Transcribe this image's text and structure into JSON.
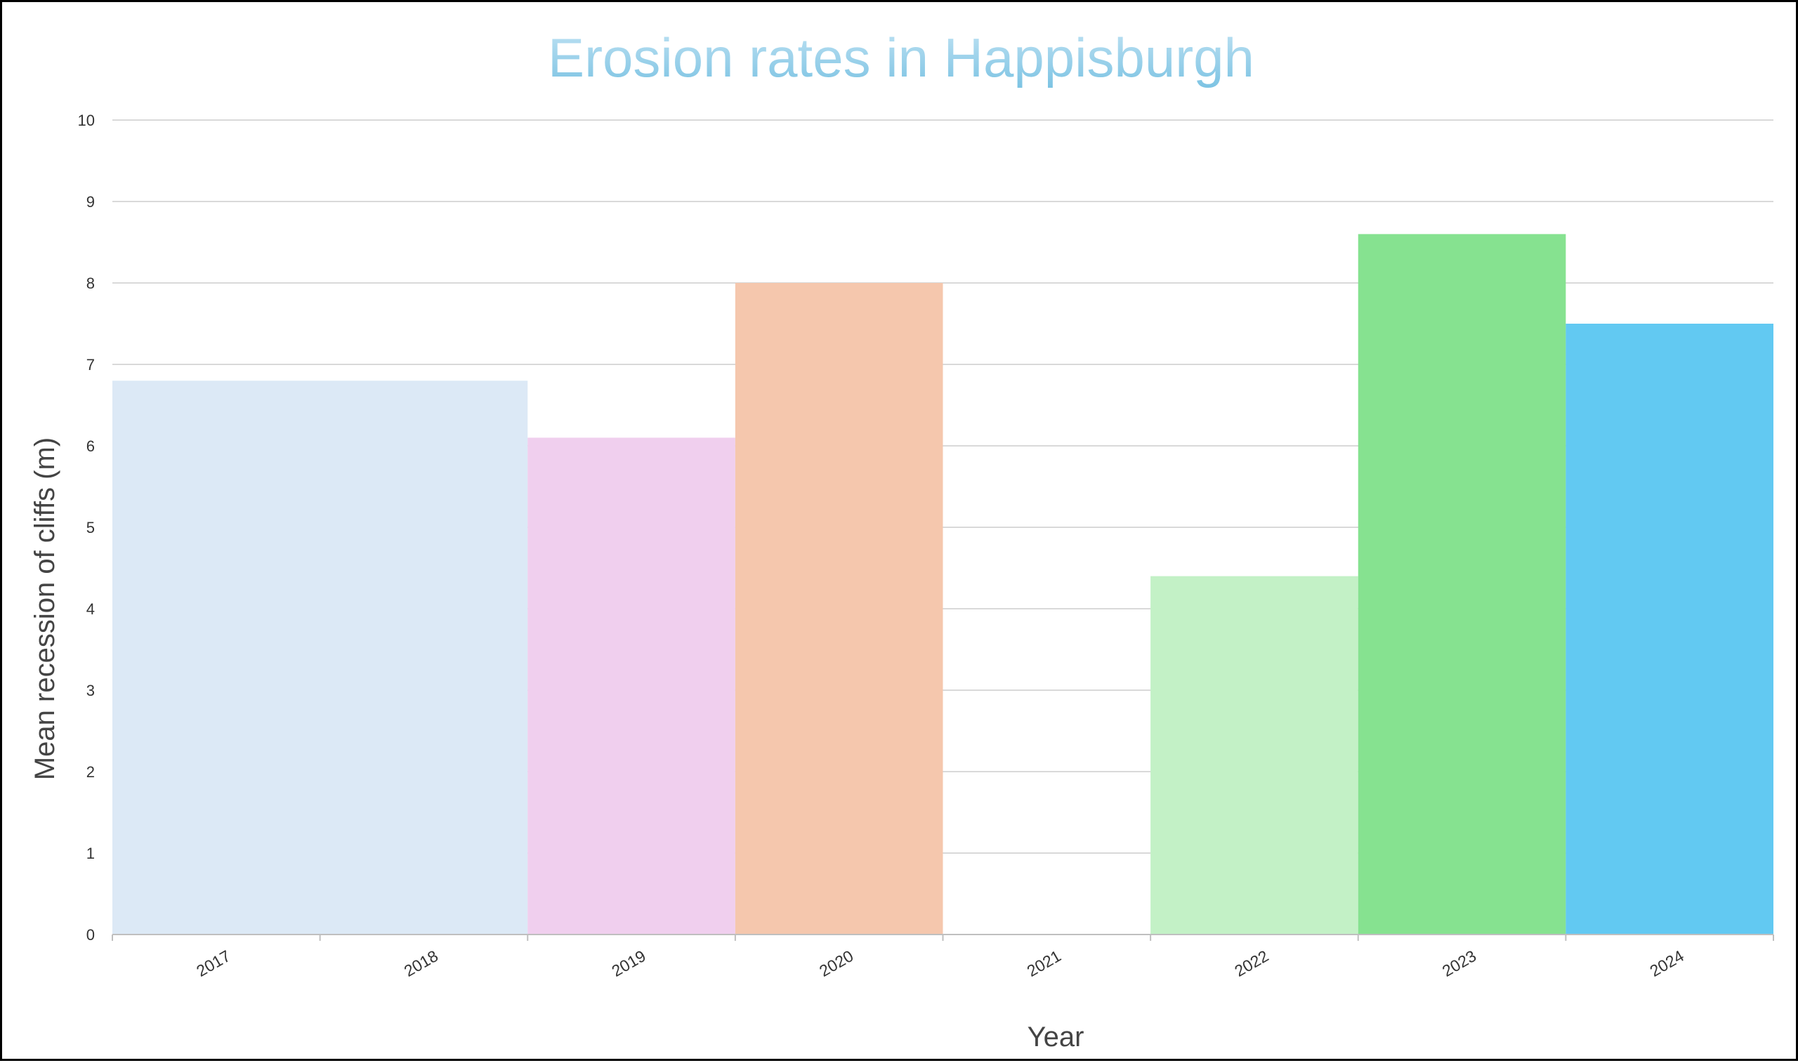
{
  "chart_data": {
    "type": "bar",
    "title": "Erosion rates in Happisburgh",
    "xlabel": "Year",
    "ylabel": "Mean recession of cliffs (m)",
    "categories": [
      "2017",
      "2018",
      "2019",
      "2020",
      "2021",
      "2022",
      "2023",
      "2024"
    ],
    "ylim": [
      0,
      10
    ],
    "yticks": [
      "0",
      "1",
      "2",
      "3",
      "4",
      "5",
      "6",
      "7",
      "8",
      "9",
      "10"
    ],
    "grid": true,
    "bars": [
      {
        "from": "2017",
        "to": "2019",
        "value": 6.8,
        "color": "#dce9f6"
      },
      {
        "from": "2019",
        "to": "2020",
        "value": 6.1,
        "color": "#f0cfee"
      },
      {
        "from": "2020",
        "to": "2021",
        "value": 8.0,
        "color": "#f5c7ad"
      },
      {
        "from": "2022",
        "to": "2023",
        "value": 4.4,
        "color": "#c3f1c6"
      },
      {
        "from": "2023",
        "to": "2024",
        "value": 8.6,
        "color": "#86e290"
      },
      {
        "from": "2024",
        "to": "end",
        "value": 7.5,
        "color": "#62c9f2"
      }
    ],
    "colors": {
      "title_top": "#bfe2f3",
      "title_bottom": "#7cc3e3",
      "grid": "#d9d9d9",
      "axis": "#bfbfbf"
    }
  }
}
